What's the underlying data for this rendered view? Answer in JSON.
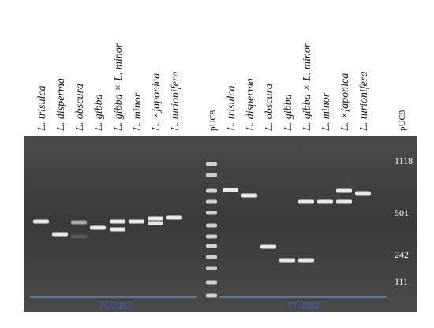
{
  "lanes_left": [
    "L. trisulca",
    "L. disperma",
    "L. obscura",
    "L. gibba",
    "L. gibba × L. minor",
    "L. minor",
    "L. ×japonica",
    "L. turionifera"
  ],
  "marker_left": "pUC8",
  "lanes_right": [
    "L. trisulca",
    "L. disperma",
    "L. obscura",
    "L. gibba",
    "L. gibba × L. minor",
    "L. minor",
    "L. ×japonica",
    "L. turionifera"
  ],
  "marker_right": "pUC8",
  "size_labels": [
    "1118",
    "501",
    "242",
    "111"
  ],
  "groups": [
    "TUBB2",
    "TUBB1"
  ]
}
